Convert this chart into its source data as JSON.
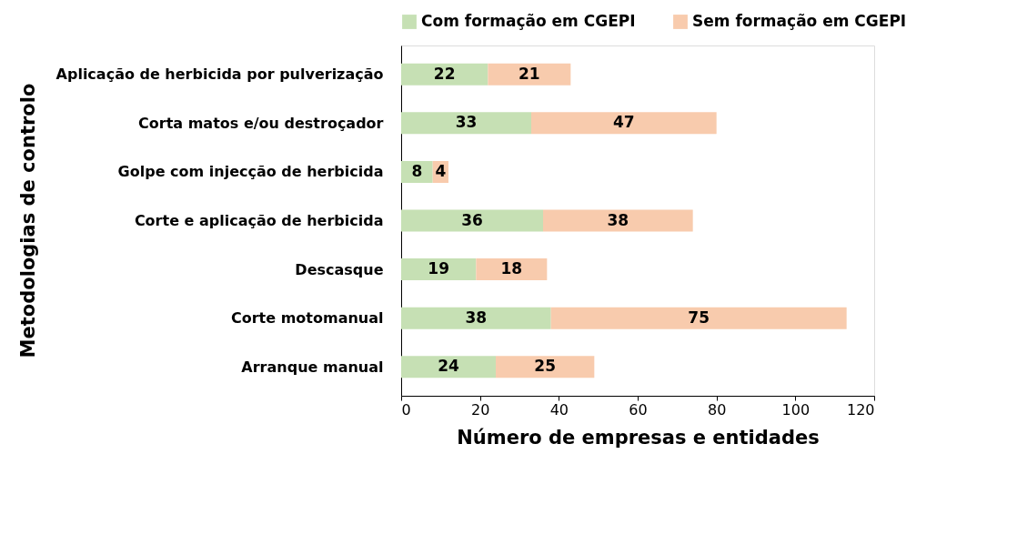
{
  "chart_data": {
    "type": "bar",
    "orientation": "horizontal",
    "stacked": true,
    "data_labels": true,
    "legend": "top",
    "grid": false,
    "xlabel": "Número de empresas e entidades",
    "ylabel": "Metodologias de controlo",
    "categories": [
      "Aplicação de herbicida por pulverização",
      "Corta matos e/ou destroçador",
      "Golpe com injecção de herbicida",
      "Corte e aplicação de herbicida",
      "Descasque",
      "Corte motomanual",
      "Arranque manual"
    ],
    "series": [
      {
        "name": "Com formação em CGEPI",
        "color": "#c6e0b4",
        "values": [
          22,
          33,
          8,
          36,
          19,
          38,
          24
        ]
      },
      {
        "name": "Sem formação em CGEPI",
        "color": "#f8cbad",
        "values": [
          21,
          47,
          4,
          38,
          18,
          75,
          25
        ]
      }
    ],
    "xlim": [
      0,
      120
    ],
    "xticks": [
      0,
      20,
      40,
      60,
      80,
      100,
      120
    ]
  }
}
